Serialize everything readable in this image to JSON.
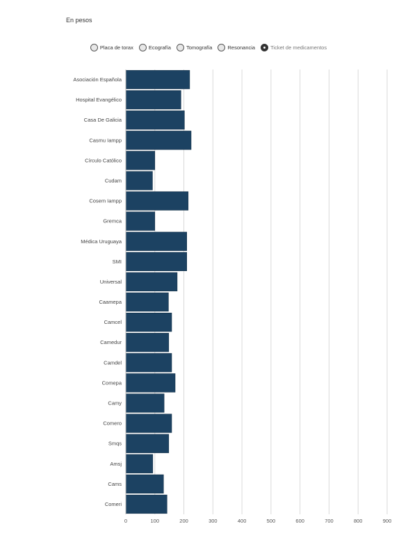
{
  "subtitle": "En pesos",
  "options": [
    {
      "label": "Placa de torax",
      "selected": false
    },
    {
      "label": "Ecografía",
      "selected": false
    },
    {
      "label": "Tomografía",
      "selected": false
    },
    {
      "label": "Resonancia",
      "selected": false
    },
    {
      "label": "Ticket de medicamentos",
      "selected": true
    }
  ],
  "chart_data": {
    "type": "bar",
    "orientation": "horizontal",
    "title": "",
    "xlabel": "",
    "ylabel": "",
    "xlim": [
      0,
      900
    ],
    "grid": true,
    "bar_color": "#1c4262",
    "ticks": [
      0,
      100,
      200,
      300,
      400,
      500,
      600,
      700,
      800,
      900
    ],
    "categories": [
      "Asociación Española",
      "Hospital Evangélico",
      "Casa De Galicia",
      "Casmu Iampp",
      "Círculo Católico",
      "Cudam",
      "Cosem Iampp",
      "Gremca",
      "Médica Uruguaya",
      "SMI",
      "Universal",
      "Caamepa",
      "Camcel",
      "Camedur",
      "Camdel",
      "Comepa",
      "Camy",
      "Comero",
      "Smqs",
      "Amsj",
      "Cams",
      "Comeri"
    ],
    "values": [
      220,
      190,
      202,
      225,
      100,
      92,
      215,
      100,
      210,
      210,
      177,
      147,
      158,
      148,
      158,
      170,
      132,
      158,
      148,
      93,
      130,
      142
    ]
  }
}
